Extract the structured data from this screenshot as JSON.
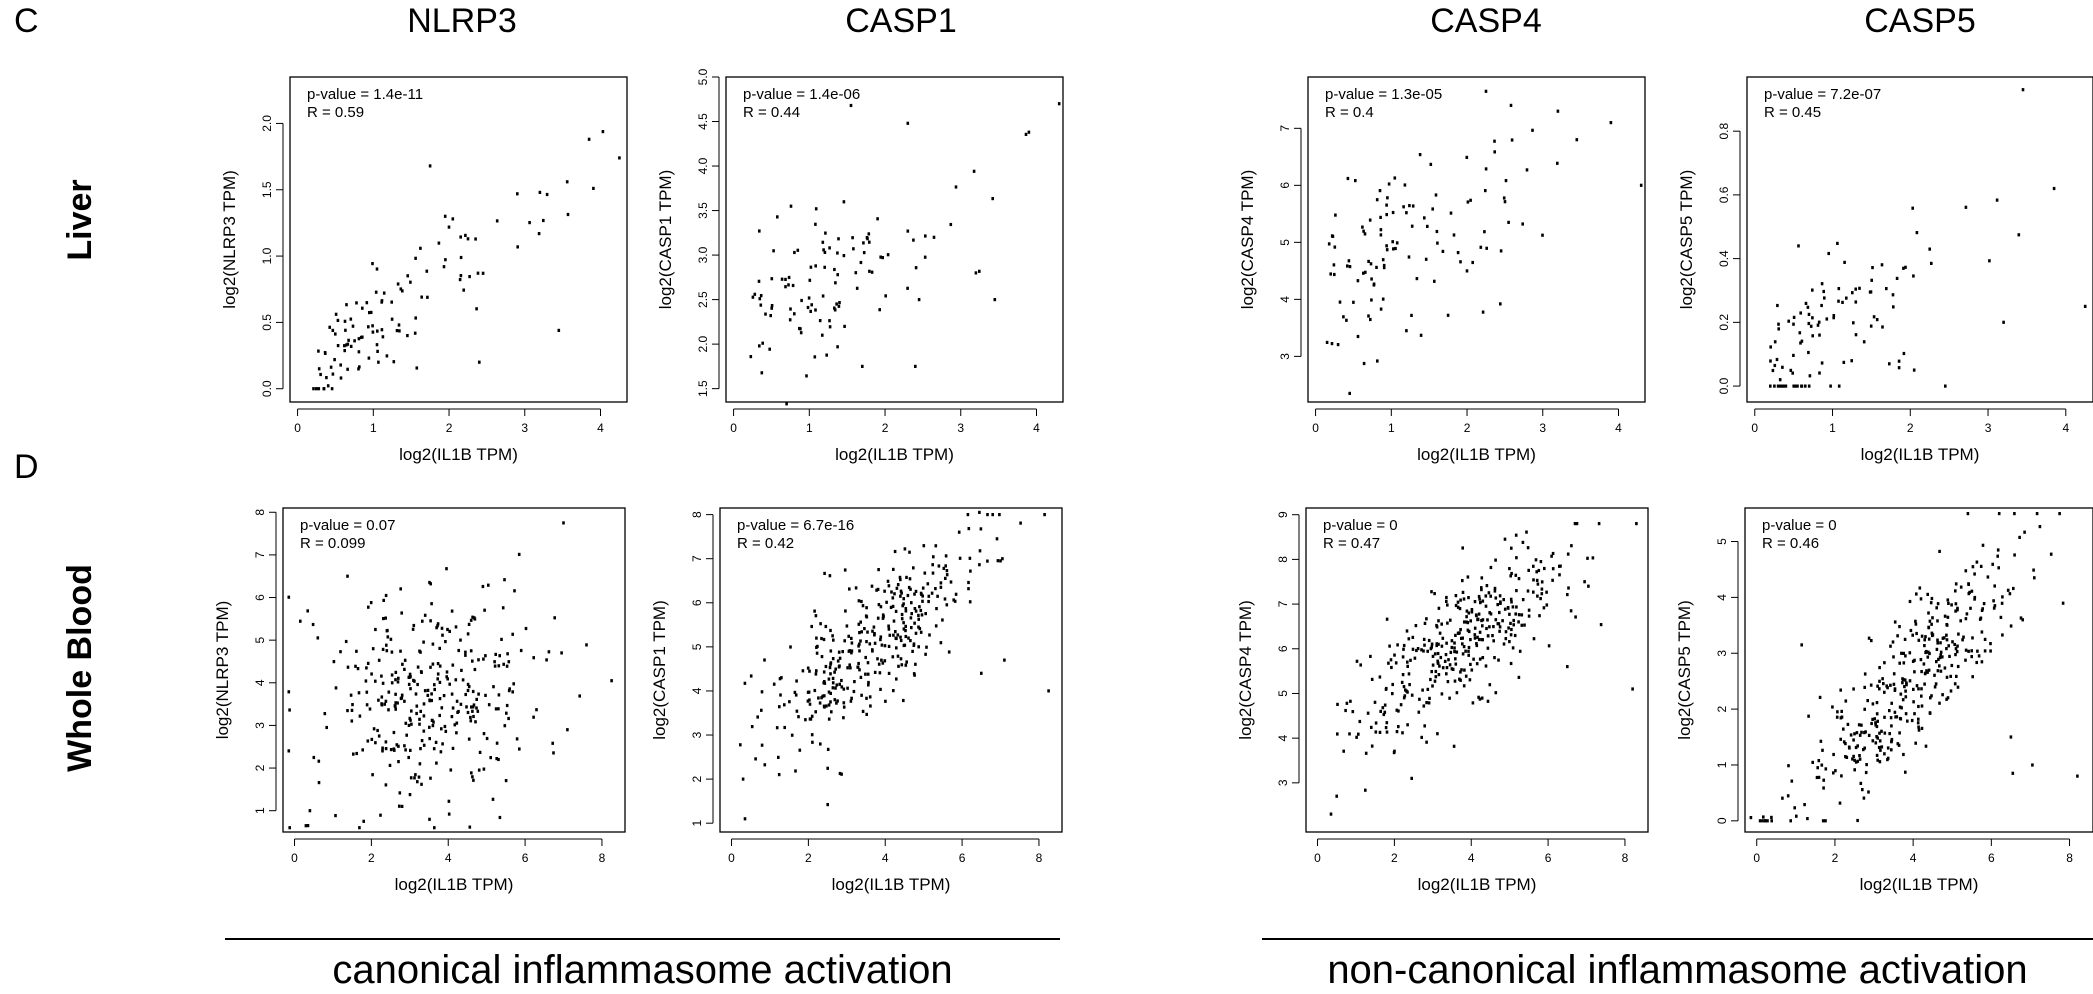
{
  "panel_letters": [
    "C",
    "D"
  ],
  "gene_titles": [
    "NLRP3",
    "CASP1",
    "CASP4",
    "CASP5"
  ],
  "tissue_labels": [
    "Liver",
    "Whole Blood"
  ],
  "group_labels": [
    "canonical inflammasome activation",
    "non-canonical inflammasome activation"
  ],
  "chart_data": [
    {
      "type": "scatter",
      "row": "Liver",
      "gene": "NLRP3",
      "xlabel": "log2(IL1B TPM)",
      "ylabel": "log2(NLRP3 TPM)",
      "pvalue": "p-value = 1.4e-11",
      "r": "R = 0.59",
      "xlim": [
        -0.1,
        4.35
      ],
      "ylim": [
        -0.1,
        2.35
      ],
      "xticks": [
        0,
        1,
        2,
        3,
        4
      ],
      "yticks": [
        0.0,
        0.5,
        1.0,
        1.5,
        2.0
      ],
      "ytick_labels": [
        "0.0",
        "0.5",
        "1.0",
        "1.5",
        "2.0"
      ],
      "seed": 11,
      "n": 110,
      "slope": 0.42,
      "intercept": 0.05,
      "noise": 0.22,
      "xdist": [
        0.2,
        1.6
      ],
      "yclip": [
        0,
        2.3
      ],
      "points": [
        [
          3.85,
          1.88
        ],
        [
          4.25,
          1.74
        ],
        [
          3.2,
          1.48
        ],
        [
          1.75,
          1.68
        ],
        [
          1.95,
          1.3
        ],
        [
          2.05,
          1.28
        ],
        [
          3.45,
          0.44
        ],
        [
          2.4,
          0.2
        ],
        [
          2.45,
          0.87
        ],
        [
          2.25,
          1.13
        ]
      ]
    },
    {
      "type": "scatter",
      "row": "Liver",
      "gene": "CASP1",
      "xlabel": "log2(IL1B TPM)",
      "ylabel": "log2(CASP1 TPM)",
      "pvalue": "p-value = 1.4e-06",
      "r": "R = 0.44",
      "xlim": [
        -0.1,
        4.35
      ],
      "ylim": [
        1.35,
        5.0
      ],
      "xticks": [
        0,
        1,
        2,
        3,
        4
      ],
      "yticks": [
        1.5,
        2.0,
        2.5,
        3.0,
        3.5,
        4.0,
        4.5,
        5.0
      ],
      "ytick_labels": [
        "1.5",
        "2.0",
        "2.5",
        "3.0",
        "3.5",
        "4.0",
        "4.5",
        "5.0"
      ],
      "seed": 23,
      "n": 105,
      "slope": 0.45,
      "intercept": 2.2,
      "noise": 0.4,
      "xdist": [
        0.2,
        1.4
      ],
      "yclip": [
        1.4,
        4.9
      ],
      "points": [
        [
          4.3,
          4.7
        ],
        [
          3.9,
          4.38
        ],
        [
          2.3,
          4.48
        ],
        [
          1.55,
          4.68
        ],
        [
          3.2,
          2.8
        ],
        [
          3.45,
          2.5
        ],
        [
          2.45,
          2.5
        ],
        [
          2.4,
          1.75
        ],
        [
          0.7,
          1.33
        ],
        [
          1.7,
          1.75
        ]
      ]
    },
    {
      "type": "scatter",
      "row": "Liver",
      "gene": "CASP4",
      "xlabel": "log2(IL1B TPM)",
      "ylabel": "log2(CASP4 TPM)",
      "pvalue": "p-value = 1.3e-05",
      "r": "R = 0.4",
      "xlim": [
        -0.1,
        4.35
      ],
      "ylim": [
        2.2,
        7.9
      ],
      "xticks": [
        0,
        1,
        2,
        3,
        4
      ],
      "yticks": [
        3,
        4,
        5,
        6,
        7
      ],
      "ytick_labels": [
        "3",
        "4",
        "5",
        "6",
        "7"
      ],
      "seed": 37,
      "n": 110,
      "slope": 0.7,
      "intercept": 4.0,
      "noise": 0.75,
      "xdist": [
        0.15,
        1.5
      ],
      "yclip": [
        2.3,
        7.7
      ],
      "points": [
        [
          2.25,
          7.65
        ],
        [
          3.2,
          7.3
        ],
        [
          3.9,
          7.1
        ],
        [
          4.3,
          6.0
        ],
        [
          3.45,
          6.8
        ],
        [
          2.45,
          4.85
        ],
        [
          1.75,
          3.72
        ],
        [
          0.45,
          2.35
        ],
        [
          1.2,
          3.45
        ],
        [
          2.0,
          4.5
        ]
      ]
    },
    {
      "type": "scatter",
      "row": "Liver",
      "gene": "CASP5",
      "xlabel": "log2(IL1B TPM)",
      "ylabel": "log2(CASP5 TPM)",
      "pvalue": "p-value = 7.2e-07",
      "r": "R = 0.45",
      "xlim": [
        -0.1,
        4.35
      ],
      "ylim": [
        -0.05,
        0.97
      ],
      "xticks": [
        0,
        1,
        2,
        3,
        4
      ],
      "yticks": [
        0.0,
        0.2,
        0.4,
        0.6,
        0.8
      ],
      "ytick_labels": [
        "0.0",
        "0.2",
        "0.4",
        "0.6",
        "0.8"
      ],
      "seed": 53,
      "n": 95,
      "slope": 0.14,
      "intercept": 0.06,
      "noise": 0.11,
      "xdist": [
        0.2,
        1.5
      ],
      "yclip": [
        0,
        0.95
      ],
      "points": [
        [
          3.45,
          0.93
        ],
        [
          3.85,
          0.62
        ],
        [
          4.25,
          0.25
        ],
        [
          3.2,
          0.2
        ],
        [
          2.45,
          0.0
        ],
        [
          2.05,
          0.05
        ],
        [
          2.25,
          0.43
        ],
        [
          0.3,
          0.0
        ],
        [
          0.4,
          0.0
        ],
        [
          0.5,
          0.0
        ],
        [
          0.55,
          0.0
        ],
        [
          0.6,
          0.0
        ],
        [
          0.65,
          0.0
        ],
        [
          0.7,
          0.0
        ],
        [
          0.2,
          0.0
        ]
      ]
    },
    {
      "type": "scatter",
      "row": "Whole Blood",
      "gene": "NLRP3",
      "xlabel": "log2(IL1B TPM)",
      "ylabel": "log2(NLRP3 TPM)",
      "pvalue": "p-value = 0.07",
      "r": "R = 0.099",
      "xlim": [
        -0.3,
        8.6
      ],
      "ylim": [
        0.5,
        8.1
      ],
      "xticks": [
        0,
        2,
        4,
        6,
        8
      ],
      "yticks": [
        1,
        2,
        3,
        4,
        5,
        6,
        7,
        8
      ],
      "ytick_labels": [
        "1",
        "2",
        "3",
        "4",
        "5",
        "6",
        "7",
        "8"
      ],
      "seed": 71,
      "n": 340,
      "slope": 0.1,
      "intercept": 3.3,
      "noise": 1.3,
      "xdist": [
        3.5,
        1.5
      ],
      "yclip": [
        0.6,
        7.9
      ],
      "points": [
        [
          8.25,
          4.05
        ],
        [
          7.0,
          7.75
        ],
        [
          7.1,
          2.9
        ],
        [
          0.35,
          0.65
        ],
        [
          0.4,
          1.0
        ],
        [
          1.8,
          0.75
        ],
        [
          2.8,
          1.1
        ],
        [
          6.95,
          4.7
        ]
      ]
    },
    {
      "type": "scatter",
      "row": "Whole Blood",
      "gene": "CASP1",
      "xlabel": "log2(IL1B TPM)",
      "ylabel": "log2(CASP1 TPM)",
      "pvalue": "p-value = 6.7e-16",
      "r": "R = 0.42",
      "xlim": [
        -0.3,
        8.6
      ],
      "ylim": [
        0.8,
        8.15
      ],
      "xticks": [
        0,
        2,
        4,
        6,
        8
      ],
      "yticks": [
        1,
        2,
        3,
        4,
        5,
        6,
        7,
        8
      ],
      "ytick_labels": [
        "1",
        "2",
        "3",
        "4",
        "5",
        "6",
        "7",
        "8"
      ],
      "seed": 89,
      "n": 360,
      "slope": 0.68,
      "intercept": 2.6,
      "noise": 0.8,
      "xdist": [
        3.7,
        1.4
      ],
      "yclip": [
        1,
        8.0
      ],
      "points": [
        [
          8.25,
          4.0
        ],
        [
          0.35,
          1.1
        ],
        [
          0.3,
          2.0
        ],
        [
          7.1,
          4.7
        ],
        [
          6.5,
          4.4
        ],
        [
          6.45,
          8.05
        ],
        [
          7.0,
          6.95
        ],
        [
          7.05,
          7.0
        ]
      ]
    },
    {
      "type": "scatter",
      "row": "Whole Blood",
      "gene": "CASP4",
      "xlabel": "log2(IL1B TPM)",
      "ylabel": "log2(CASP4 TPM)",
      "pvalue": "p-value = 0",
      "r": "R = 0.47",
      "xlim": [
        -0.3,
        8.6
      ],
      "ylim": [
        1.9,
        9.15
      ],
      "xticks": [
        0,
        2,
        4,
        6,
        8
      ],
      "yticks": [
        3,
        4,
        5,
        6,
        7,
        8,
        9
      ],
      "ytick_labels": [
        "3",
        "4",
        "5",
        "6",
        "7",
        "8",
        "9"
      ],
      "seed": 97,
      "n": 370,
      "slope": 0.6,
      "intercept": 3.9,
      "noise": 0.75,
      "xdist": [
        3.7,
        1.5
      ],
      "yclip": [
        2.2,
        8.8
      ],
      "points": [
        [
          8.2,
          5.1
        ],
        [
          0.35,
          2.3
        ],
        [
          0.5,
          2.7
        ],
        [
          2.45,
          3.1
        ],
        [
          6.95,
          7.5
        ],
        [
          7.05,
          7.4
        ],
        [
          6.6,
          6.85
        ],
        [
          6.5,
          5.6
        ]
      ]
    },
    {
      "type": "scatter",
      "row": "Whole Blood",
      "gene": "CASP5",
      "xlabel": "log2(IL1B TPM)",
      "ylabel": "log2(CASP5 TPM)",
      "pvalue": "p-value = 0",
      "r": "R = 0.46",
      "xlim": [
        -0.3,
        8.6
      ],
      "ylim": [
        -0.2,
        5.6
      ],
      "xticks": [
        0,
        2,
        4,
        6,
        8
      ],
      "yticks": [
        0,
        1,
        2,
        3,
        4,
        5
      ],
      "ytick_labels": [
        "0",
        "1",
        "2",
        "3",
        "4",
        "5"
      ],
      "seed": 131,
      "n": 380,
      "slope": 0.72,
      "intercept": -0.3,
      "noise": 0.6,
      "xdist": [
        3.7,
        1.5
      ],
      "yclip": [
        0,
        5.5
      ],
      "points": [
        [
          8.2,
          0.8
        ],
        [
          6.55,
          0.85
        ],
        [
          7.05,
          1.0
        ],
        [
          5.4,
          5.5
        ],
        [
          6.2,
          5.5
        ],
        [
          7.1,
          4.35
        ],
        [
          6.5,
          1.5
        ],
        [
          1.15,
          3.15
        ]
      ]
    }
  ]
}
